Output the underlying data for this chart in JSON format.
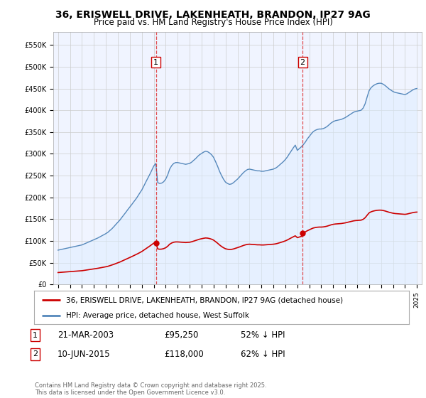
{
  "title": "36, ERISWELL DRIVE, LAKENHEATH, BRANDON, IP27 9AG",
  "subtitle": "Price paid vs. HM Land Registry's House Price Index (HPI)",
  "background_color": "#ffffff",
  "plot_bg_color": "#ffffff",
  "sale1_date": "21-MAR-2003",
  "sale1_price": 95250,
  "sale1_year": 2003.19,
  "sale2_date": "10-JUN-2015",
  "sale2_price": 118000,
  "sale2_year": 2015.44,
  "legend_line1": "36, ERISWELL DRIVE, LAKENHEATH, BRANDON, IP27 9AG (detached house)",
  "legend_line2": "HPI: Average price, detached house, West Suffolk",
  "footer": "Contains HM Land Registry data © Crown copyright and database right 2025.\nThis data is licensed under the Open Government Licence v3.0.",
  "ylabel_ticks": [
    "£0",
    "£50K",
    "£100K",
    "£150K",
    "£200K",
    "£250K",
    "£300K",
    "£350K",
    "£400K",
    "£450K",
    "£500K",
    "£550K"
  ],
  "ytick_values": [
    0,
    50000,
    100000,
    150000,
    200000,
    250000,
    300000,
    350000,
    400000,
    450000,
    500000,
    550000
  ],
  "ymax": 580000,
  "red_line_color": "#cc0000",
  "blue_line_color": "#5588bb",
  "blue_fill_color": "#ddeeff",
  "vline_color": "#dd2222",
  "marker_color": "#cc0000",
  "hpi_years": [
    1995.0,
    1995.08,
    1995.17,
    1995.25,
    1995.33,
    1995.42,
    1995.5,
    1995.58,
    1995.67,
    1995.75,
    1995.83,
    1995.92,
    1996.0,
    1996.08,
    1996.17,
    1996.25,
    1996.33,
    1996.42,
    1996.5,
    1996.58,
    1996.67,
    1996.75,
    1996.83,
    1996.92,
    1997.0,
    1997.17,
    1997.33,
    1997.5,
    1997.67,
    1997.83,
    1998.0,
    1998.17,
    1998.33,
    1998.5,
    1998.67,
    1998.83,
    1999.0,
    1999.17,
    1999.33,
    1999.5,
    1999.67,
    1999.83,
    2000.0,
    2000.17,
    2000.33,
    2000.5,
    2000.67,
    2000.83,
    2001.0,
    2001.17,
    2001.33,
    2001.5,
    2001.67,
    2001.83,
    2002.0,
    2002.17,
    2002.33,
    2002.5,
    2002.67,
    2002.83,
    2003.0,
    2003.17,
    2003.33,
    2003.5,
    2003.67,
    2003.83,
    2004.0,
    2004.17,
    2004.33,
    2004.5,
    2004.67,
    2004.83,
    2005.0,
    2005.17,
    2005.33,
    2005.5,
    2005.67,
    2005.83,
    2006.0,
    2006.17,
    2006.33,
    2006.5,
    2006.67,
    2006.83,
    2007.0,
    2007.17,
    2007.33,
    2007.5,
    2007.67,
    2007.83,
    2008.0,
    2008.17,
    2008.33,
    2008.5,
    2008.67,
    2008.83,
    2009.0,
    2009.17,
    2009.33,
    2009.5,
    2009.67,
    2009.83,
    2010.0,
    2010.17,
    2010.33,
    2010.5,
    2010.67,
    2010.83,
    2011.0,
    2011.17,
    2011.33,
    2011.5,
    2011.67,
    2011.83,
    2012.0,
    2012.17,
    2012.33,
    2012.5,
    2012.67,
    2012.83,
    2013.0,
    2013.17,
    2013.33,
    2013.5,
    2013.67,
    2013.83,
    2014.0,
    2014.17,
    2014.33,
    2014.5,
    2014.67,
    2014.83,
    2015.0,
    2015.17,
    2015.33,
    2015.5,
    2015.67,
    2015.83,
    2016.0,
    2016.17,
    2016.33,
    2016.5,
    2016.67,
    2016.83,
    2017.0,
    2017.17,
    2017.33,
    2017.5,
    2017.67,
    2017.83,
    2018.0,
    2018.17,
    2018.33,
    2018.5,
    2018.67,
    2018.83,
    2019.0,
    2019.17,
    2019.33,
    2019.5,
    2019.67,
    2019.83,
    2020.0,
    2020.17,
    2020.33,
    2020.5,
    2020.67,
    2020.83,
    2021.0,
    2021.17,
    2021.33,
    2021.5,
    2021.67,
    2021.83,
    2022.0,
    2022.17,
    2022.33,
    2022.5,
    2022.67,
    2022.83,
    2023.0,
    2023.17,
    2023.33,
    2023.5,
    2023.67,
    2023.83,
    2024.0,
    2024.17,
    2024.33,
    2024.5,
    2024.67,
    2024.83,
    2025.0
  ],
  "hpi_values": [
    79000,
    79500,
    80000,
    80500,
    81000,
    81500,
    82000,
    82500,
    83000,
    83500,
    84000,
    84500,
    85000,
    85500,
    86000,
    86500,
    87000,
    87500,
    88000,
    88500,
    89000,
    89500,
    90000,
    90500,
    91000,
    93000,
    95000,
    97000,
    99000,
    101000,
    103000,
    105000,
    107000,
    109500,
    112000,
    114500,
    117000,
    120000,
    124000,
    128000,
    133000,
    138000,
    143000,
    148000,
    154000,
    160000,
    166000,
    172000,
    178000,
    184000,
    190000,
    196000,
    203000,
    210000,
    217000,
    226000,
    235000,
    244000,
    253000,
    262000,
    272000,
    278000,
    234000,
    232000,
    233000,
    236000,
    242000,
    252000,
    265000,
    273000,
    278000,
    280000,
    280000,
    279000,
    278000,
    277000,
    276000,
    277000,
    278000,
    281000,
    285000,
    289000,
    294000,
    298000,
    301000,
    304000,
    306000,
    305000,
    302000,
    298000,
    292000,
    282000,
    272000,
    260000,
    250000,
    242000,
    235000,
    232000,
    230000,
    231000,
    234000,
    238000,
    242000,
    247000,
    252000,
    257000,
    261000,
    264000,
    265000,
    264000,
    263000,
    262000,
    261000,
    261000,
    260000,
    260000,
    261000,
    262000,
    263000,
    264000,
    265000,
    267000,
    270000,
    274000,
    278000,
    282000,
    287000,
    293000,
    300000,
    307000,
    314000,
    320000,
    308000,
    312000,
    316000,
    321000,
    327000,
    334000,
    340000,
    346000,
    351000,
    354000,
    356000,
    357000,
    357000,
    358000,
    360000,
    363000,
    367000,
    371000,
    374000,
    376000,
    377000,
    378000,
    379000,
    381000,
    383000,
    386000,
    389000,
    392000,
    395000,
    397000,
    398000,
    399000,
    400000,
    405000,
    415000,
    430000,
    445000,
    452000,
    456000,
    459000,
    461000,
    462000,
    462000,
    460000,
    457000,
    453000,
    449000,
    446000,
    443000,
    441000,
    440000,
    439000,
    438000,
    437000,
    436000,
    438000,
    441000,
    444000,
    447000,
    449000,
    450000
  ],
  "red_years": [
    1995.0,
    1995.17,
    1995.33,
    1995.5,
    1995.67,
    1995.83,
    1996.0,
    1996.17,
    1996.33,
    1996.5,
    1996.67,
    1996.83,
    1997.0,
    1997.17,
    1997.33,
    1997.5,
    1997.67,
    1997.83,
    1998.0,
    1998.17,
    1998.33,
    1998.5,
    1998.67,
    1998.83,
    1999.0,
    1999.17,
    1999.33,
    1999.5,
    1999.67,
    1999.83,
    2000.0,
    2000.17,
    2000.33,
    2000.5,
    2000.67,
    2000.83,
    2001.0,
    2001.17,
    2001.33,
    2001.5,
    2001.67,
    2001.83,
    2002.0,
    2002.17,
    2002.33,
    2002.5,
    2002.67,
    2002.83,
    2003.0,
    2003.17,
    2003.19,
    2003.33,
    2003.5,
    2003.67,
    2003.83,
    2004.0,
    2004.17,
    2004.33,
    2004.5,
    2004.67,
    2004.83,
    2005.0,
    2005.17,
    2005.33,
    2005.5,
    2005.67,
    2005.83,
    2006.0,
    2006.17,
    2006.33,
    2006.5,
    2006.67,
    2006.83,
    2007.0,
    2007.17,
    2007.33,
    2007.5,
    2007.67,
    2007.83,
    2008.0,
    2008.17,
    2008.33,
    2008.5,
    2008.67,
    2008.83,
    2009.0,
    2009.17,
    2009.33,
    2009.5,
    2009.67,
    2009.83,
    2010.0,
    2010.17,
    2010.33,
    2010.5,
    2010.67,
    2010.83,
    2011.0,
    2011.17,
    2011.33,
    2011.5,
    2011.67,
    2011.83,
    2012.0,
    2012.17,
    2012.33,
    2012.5,
    2012.67,
    2012.83,
    2013.0,
    2013.17,
    2013.33,
    2013.5,
    2013.67,
    2013.83,
    2014.0,
    2014.17,
    2014.33,
    2014.5,
    2014.67,
    2014.83,
    2015.0,
    2015.17,
    2015.33,
    2015.44,
    2015.5,
    2015.67,
    2015.83,
    2016.0,
    2016.17,
    2016.33,
    2016.5,
    2016.67,
    2016.83,
    2017.0,
    2017.17,
    2017.33,
    2017.5,
    2017.67,
    2017.83,
    2018.0,
    2018.17,
    2018.33,
    2018.5,
    2018.67,
    2018.83,
    2019.0,
    2019.17,
    2019.33,
    2019.5,
    2019.67,
    2019.83,
    2020.0,
    2020.17,
    2020.33,
    2020.5,
    2020.67,
    2020.83,
    2021.0,
    2021.17,
    2021.33,
    2021.5,
    2021.67,
    2021.83,
    2022.0,
    2022.17,
    2022.33,
    2022.5,
    2022.67,
    2022.83,
    2023.0,
    2023.17,
    2023.33,
    2023.5,
    2023.67,
    2023.83,
    2024.0,
    2024.17,
    2024.33,
    2024.5,
    2024.67,
    2024.83,
    2025.0
  ]
}
